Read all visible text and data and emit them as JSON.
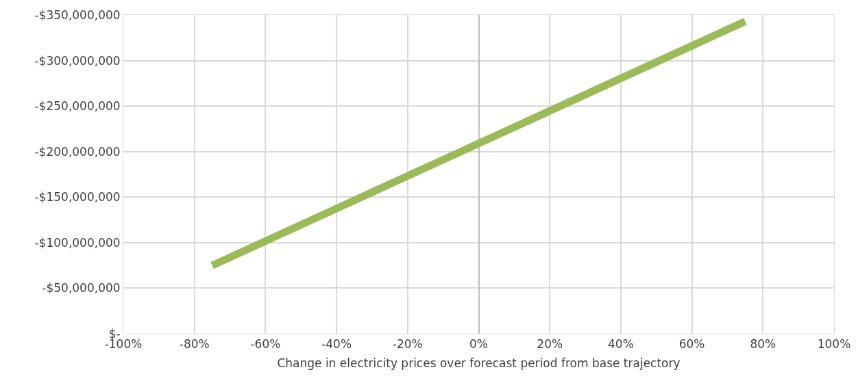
{
  "chart_data": {
    "type": "line",
    "xlabel": "Change in electricity prices over forecast period from base trajectory",
    "x": [
      -75,
      75
    ],
    "series": [
      {
        "color": "#9bbb59",
        "values": [
          -75000000,
          -343000000
        ]
      }
    ],
    "xlim": [
      -100,
      100
    ],
    "xticks": [
      {
        "value": -100,
        "label": "-100%"
      },
      {
        "value": -80,
        "label": "-80%"
      },
      {
        "value": -60,
        "label": "-60%"
      },
      {
        "value": -40,
        "label": "-40%"
      },
      {
        "value": -20,
        "label": "-20%"
      },
      {
        "value": 0,
        "label": "0%"
      },
      {
        "value": 20,
        "label": "20%"
      },
      {
        "value": 40,
        "label": "40%"
      },
      {
        "value": 60,
        "label": "60%"
      },
      {
        "value": 80,
        "label": "80%"
      },
      {
        "value": 100,
        "label": "100%"
      }
    ],
    "ylim": [
      0,
      -350000000
    ],
    "yticks": [
      {
        "value": 0,
        "label": "$-"
      },
      {
        "value": -50000000,
        "label": "-$50,000,000"
      },
      {
        "value": -100000000,
        "label": "-$100,000,000"
      },
      {
        "value": -150000000,
        "label": "-$150,000,000"
      },
      {
        "value": -200000000,
        "label": "-$200,000,000"
      },
      {
        "value": -250000000,
        "label": "-$250,000,000"
      },
      {
        "value": -300000000,
        "label": "-$300,000,000"
      },
      {
        "value": -350000000,
        "label": "-$350,000,000"
      }
    ],
    "grid": true,
    "marker": "none",
    "line_style": "solid"
  }
}
